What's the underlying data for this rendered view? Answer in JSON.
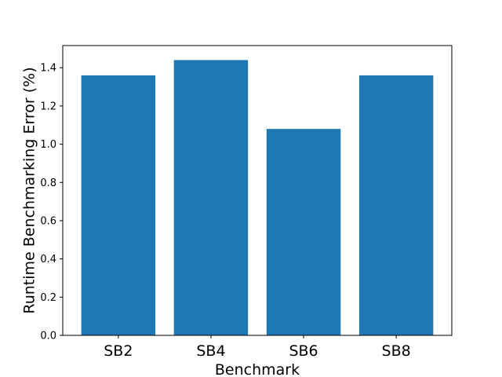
{
  "chart_data": {
    "type": "bar",
    "title": "",
    "xlabel": "Benchmark",
    "ylabel": "Runtime Benchmarking Error (%)",
    "categories": [
      "SB2",
      "SB4",
      "SB6",
      "SB8"
    ],
    "values": [
      1.36,
      1.44,
      1.08,
      1.36
    ],
    "ylim": [
      0,
      1.516
    ],
    "yticks": [
      "0.0",
      "0.2",
      "0.4",
      "0.6",
      "0.8",
      "1.0",
      "1.2",
      "1.4"
    ],
    "bar_color": "#1f77b4",
    "grid": false,
    "legend": "none"
  }
}
